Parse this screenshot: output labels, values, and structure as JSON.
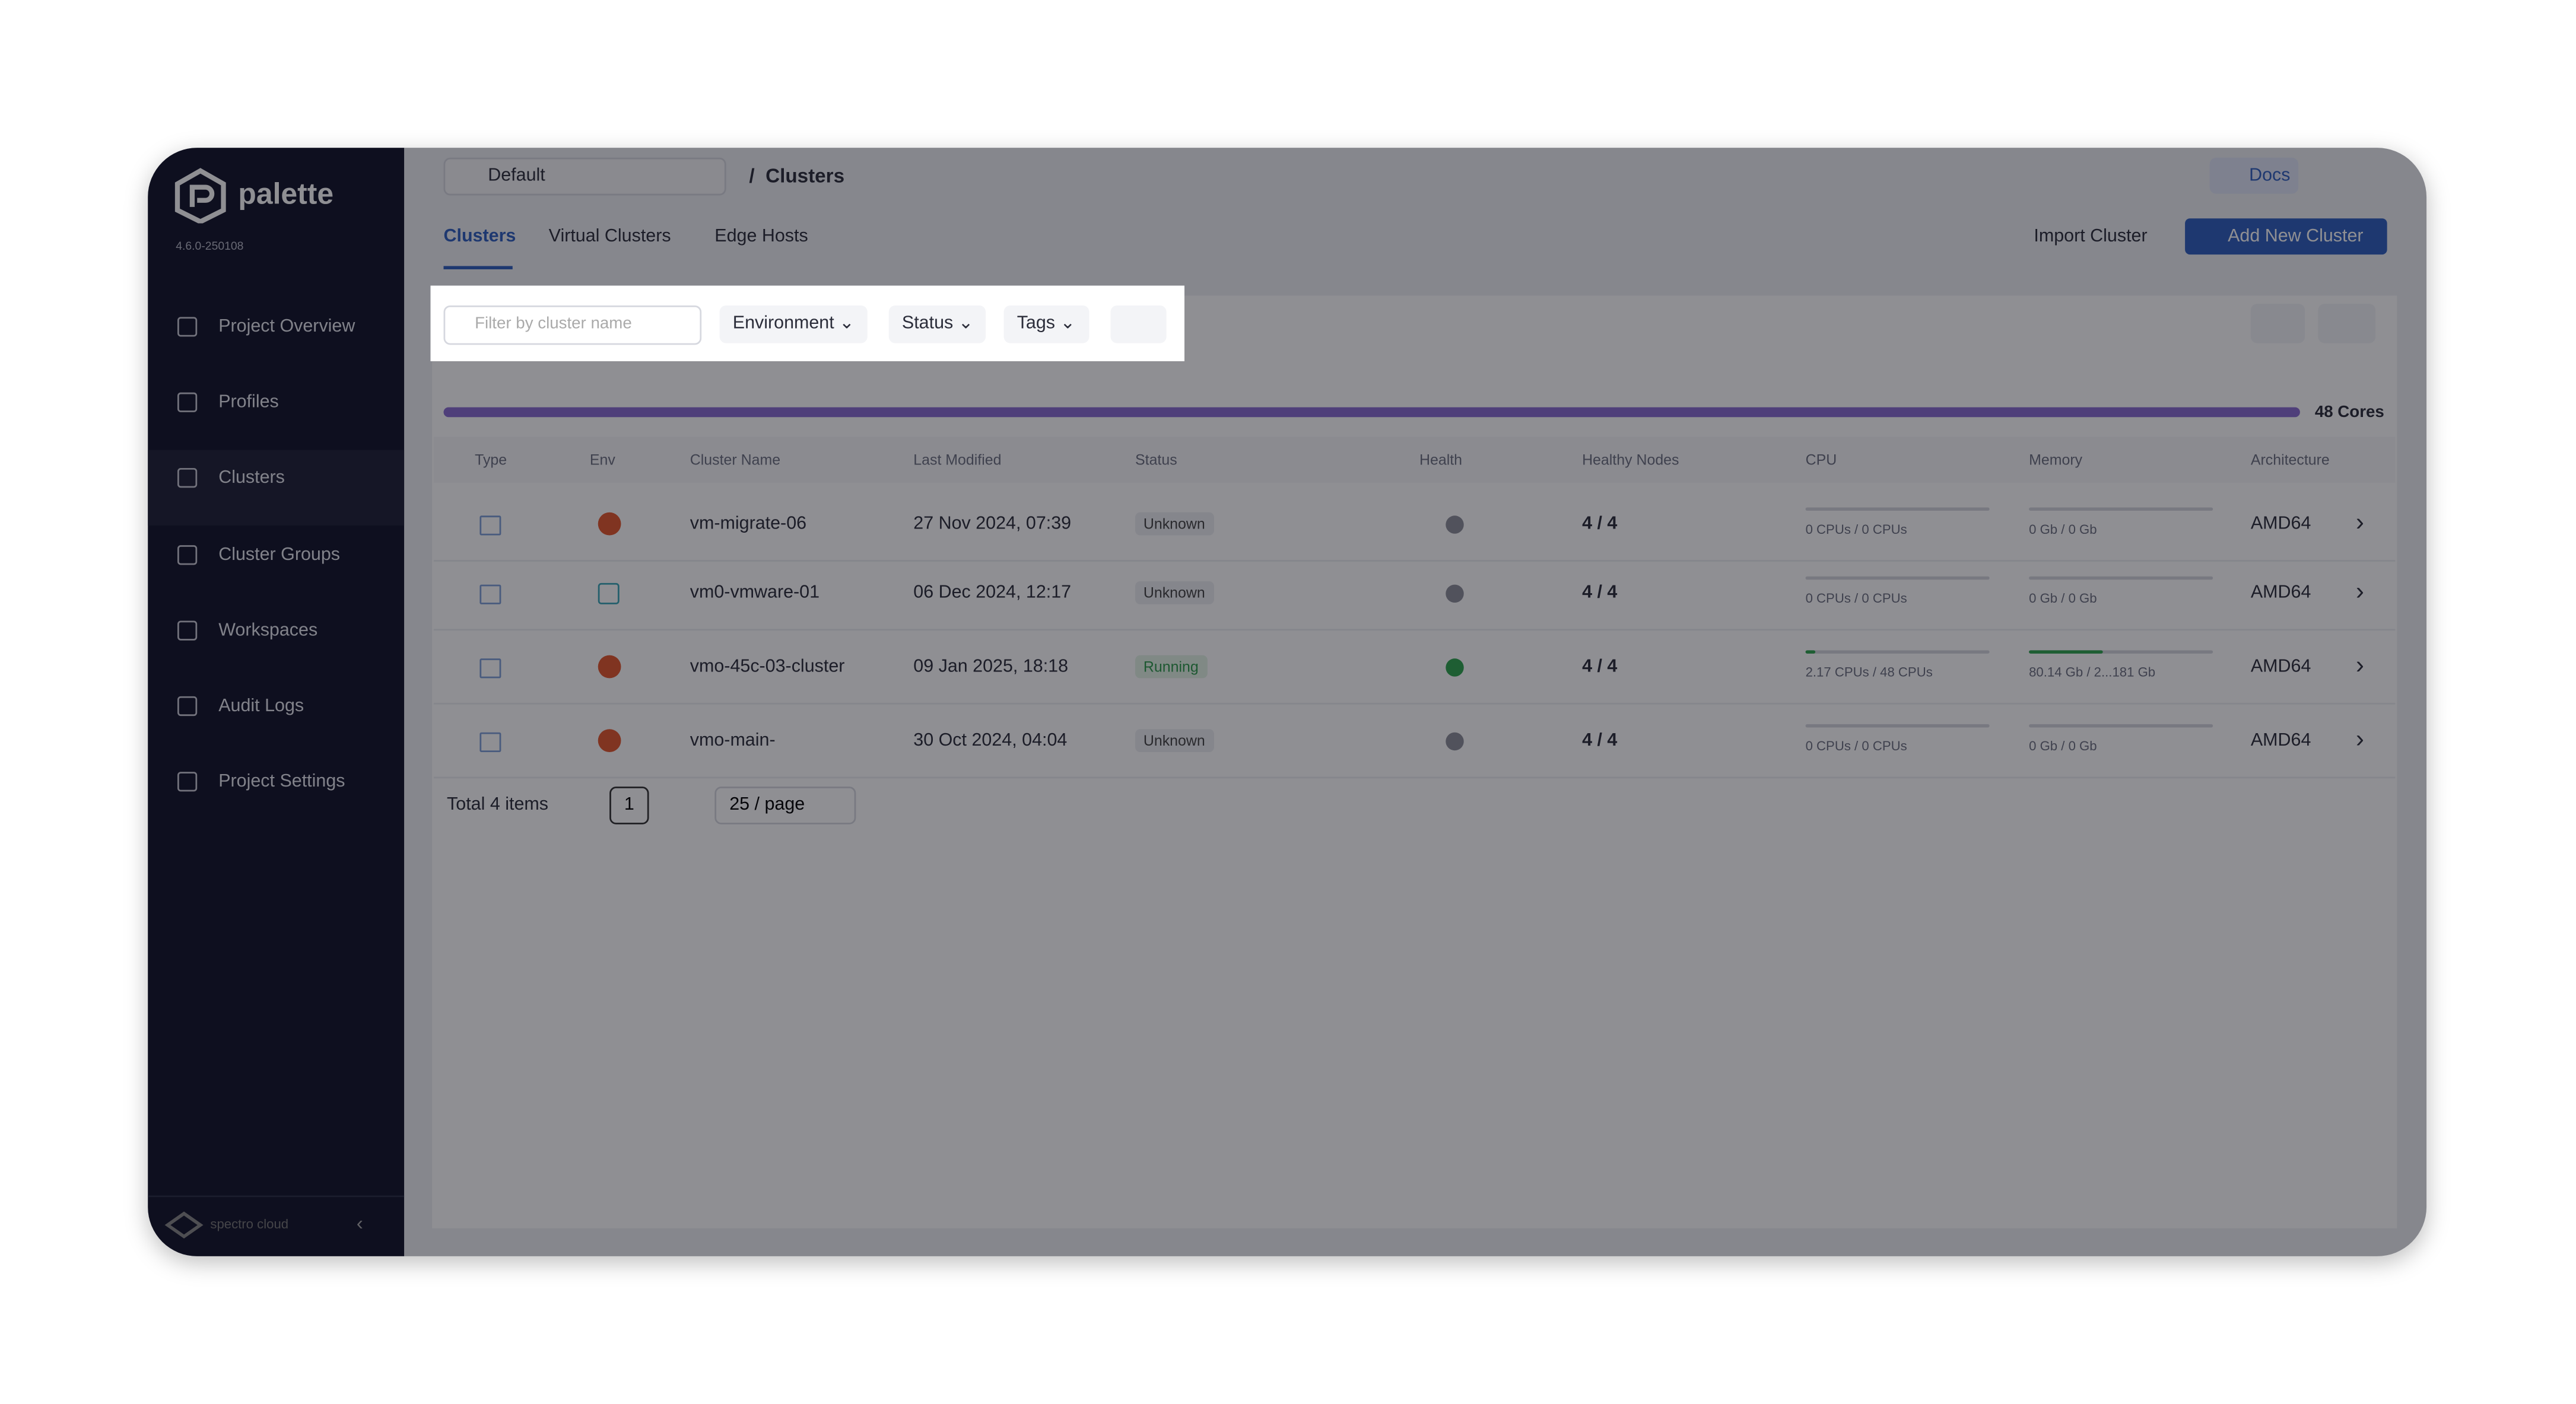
{
  "sidebar": {
    "brand": "palette",
    "version": "4.6.0-250108",
    "nav": [
      "Project Overview",
      "Profiles",
      "Clusters",
      "Cluster Groups",
      "Workspaces",
      "Audit Logs",
      "Project Settings"
    ],
    "footer": "spectro cloud"
  },
  "topbar": {
    "project": "Default",
    "breadcrumb": "Clusters",
    "docs": "Docs"
  },
  "tabs": [
    "Clusters",
    "Virtual Clusters",
    "Edge Hosts"
  ],
  "actions": {
    "import": "Import Cluster",
    "add": "Add New Cluster"
  },
  "filters": {
    "search_placeholder": "Filter by cluster name",
    "dropdowns": [
      "Environment",
      "Status",
      "Tags"
    ]
  },
  "cores": "48 Cores",
  "table": {
    "headers": [
      "Type",
      "Env",
      "Cluster Name",
      "Last Modified",
      "Status",
      "Health",
      "Healthy Nodes",
      "CPU",
      "Memory",
      "Architecture"
    ],
    "rows": [
      [
        "vm-migrate-06",
        "27 Nov 2024, 07:39",
        "Unknown",
        "4 / 4",
        "0 CPUs / 0 CPUs",
        "0 Gb / 0 Gb",
        "AMD64"
      ],
      [
        "vm0-vmware-01",
        "06 Dec 2024, 12:17",
        "Unknown",
        "4 / 4",
        "0 CPUs / 0 CPUs",
        "0 Gb / 0 Gb",
        "AMD64"
      ],
      [
        "vmo-45c-03-cluster",
        "09 Jan 2025, 18:18",
        "Running",
        "4 / 4",
        "2.17 CPUs / 48 CPUs",
        "80.14 Gb / 2...181 Gb",
        "AMD64"
      ],
      [
        "vmo-main-",
        "30 Oct 2024, 04:04",
        "Unknown",
        "4 / 4",
        "0 CPUs / 0 CPUs",
        "0 Gb / 0 Gb",
        "AMD64"
      ]
    ]
  },
  "pagination": {
    "total": "Total 4 items",
    "page": "1",
    "page_size": "25 / page"
  }
}
